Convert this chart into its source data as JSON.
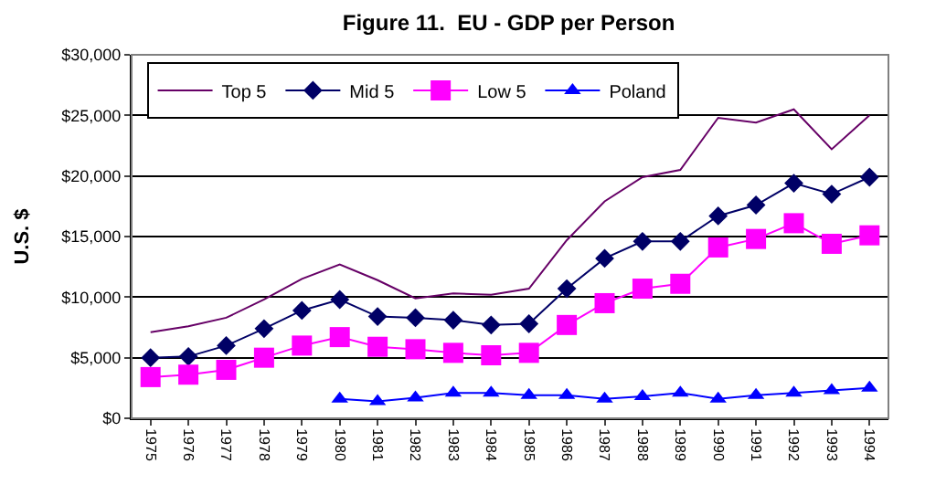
{
  "chart_data": {
    "type": "line",
    "title": "Figure 11.  EU - GDP per Person",
    "ylabel": "U.S. $",
    "categories": [
      "1975",
      "1976",
      "1977",
      "1978",
      "1979",
      "1980",
      "1981",
      "1982",
      "1983",
      "1984",
      "1985",
      "1986",
      "1987",
      "1988",
      "1989",
      "1990",
      "1991",
      "1992",
      "1993",
      "1994"
    ],
    "series": [
      {
        "name": "Top 5",
        "color": "#660066",
        "marker": "none",
        "values": [
          7100,
          7600,
          8300,
          9800,
          11500,
          12700,
          11400,
          9900,
          10300,
          10200,
          10700,
          14700,
          17900,
          19900,
          20500,
          24800,
          24400,
          25500,
          22200,
          25000
        ]
      },
      {
        "name": "Mid 5",
        "color": "#000066",
        "marker": "diamond",
        "values": [
          5000,
          5100,
          6000,
          7400,
          8900,
          9800,
          8400,
          8300,
          8100,
          7700,
          7800,
          10700,
          13200,
          14600,
          14600,
          16700,
          17600,
          19400,
          18500,
          19900
        ]
      },
      {
        "name": "Low 5",
        "color": "#ff00ff",
        "marker": "square",
        "values": [
          3400,
          3600,
          4000,
          5000,
          6000,
          6700,
          5900,
          5700,
          5400,
          5200,
          5400,
          7700,
          9500,
          10700,
          11100,
          14100,
          14800,
          16100,
          14400,
          15100
        ]
      },
      {
        "name": "Poland",
        "color": "#0000ff",
        "marker": "triangle",
        "values": [
          null,
          null,
          null,
          null,
          null,
          1600,
          1400,
          1700,
          2100,
          2100,
          1900,
          1900,
          1600,
          1800,
          2100,
          1600,
          1900,
          2100,
          2300,
          2500
        ]
      }
    ],
    "ylim": [
      0,
      30000
    ],
    "yticks": [
      {
        "value": 0,
        "label": "$0"
      },
      {
        "value": 5000,
        "label": "$5,000"
      },
      {
        "value": 10000,
        "label": "$10,000"
      },
      {
        "value": 15000,
        "label": "$15,000"
      },
      {
        "value": 20000,
        "label": "$20,000"
      },
      {
        "value": 25000,
        "label": "$25,000"
      },
      {
        "value": 30000,
        "label": "$30,000"
      }
    ],
    "grid": "y",
    "legend": "top left",
    "line_style": "solid"
  }
}
